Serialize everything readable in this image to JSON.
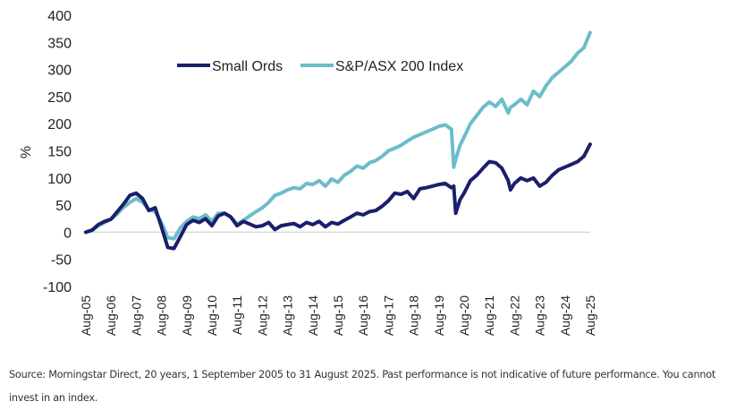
{
  "chart_data": {
    "type": "line",
    "title": "",
    "xlabel": "",
    "ylabel": "%",
    "ylim": [
      -100,
      400
    ],
    "yticks": [
      400,
      350,
      300,
      250,
      200,
      150,
      100,
      50,
      0,
      -50,
      -100
    ],
    "xlim": [
      2005.583,
      2025.583
    ],
    "xtick_labels": [
      "Aug-05",
      "Aug-06",
      "Aug-07",
      "Aug-08",
      "Aug-09",
      "Aug-10",
      "Aug-11",
      "Aug-12",
      "Aug-13",
      "Aug-14",
      "Aug-15",
      "Aug-16",
      "Aug-17",
      "Aug-18",
      "Aug-19",
      "Aug-20",
      "Aug-21",
      "Aug-22",
      "Aug-23",
      "Aug-24",
      "Aug-25"
    ],
    "grid": false,
    "legend_position": "top-center",
    "x": [
      2005.58,
      2005.83,
      2006.08,
      2006.33,
      2006.58,
      2006.83,
      2007.08,
      2007.33,
      2007.58,
      2007.83,
      2008.08,
      2008.33,
      2008.58,
      2008.83,
      2009.08,
      2009.33,
      2009.58,
      2009.83,
      2010.08,
      2010.33,
      2010.58,
      2010.83,
      2011.08,
      2011.33,
      2011.58,
      2011.83,
      2012.08,
      2012.33,
      2012.58,
      2012.83,
      2013.08,
      2013.33,
      2013.58,
      2013.83,
      2014.08,
      2014.33,
      2014.58,
      2014.83,
      2015.08,
      2015.33,
      2015.58,
      2015.83,
      2016.08,
      2016.33,
      2016.58,
      2016.83,
      2017.08,
      2017.33,
      2017.58,
      2017.83,
      2018.08,
      2018.33,
      2018.58,
      2018.83,
      2019.08,
      2019.33,
      2019.58,
      2019.83,
      2020.08,
      2020.17,
      2020.25,
      2020.42,
      2020.58,
      2020.83,
      2021.08,
      2021.33,
      2021.58,
      2021.83,
      2022.08,
      2022.33,
      2022.42,
      2022.58,
      2022.83,
      2023.08,
      2023.33,
      2023.58,
      2023.83,
      2024.08,
      2024.33,
      2024.58,
      2024.83,
      2025.08,
      2025.33,
      2025.58
    ],
    "series": [
      {
        "name": "Small Ords",
        "color": "#1b1f6b",
        "values": [
          0,
          4,
          14,
          20,
          24,
          38,
          52,
          68,
          72,
          62,
          40,
          45,
          10,
          -28,
          -30,
          -8,
          14,
          22,
          18,
          25,
          12,
          30,
          35,
          28,
          12,
          20,
          15,
          10,
          12,
          18,
          5,
          12,
          14,
          16,
          10,
          18,
          14,
          20,
          10,
          18,
          15,
          22,
          28,
          35,
          32,
          38,
          40,
          48,
          58,
          72,
          70,
          75,
          62,
          80,
          82,
          85,
          88,
          90,
          82,
          85,
          35,
          60,
          72,
          95,
          105,
          118,
          130,
          128,
          118,
          95,
          78,
          90,
          100,
          95,
          100,
          85,
          92,
          105,
          115,
          120,
          125,
          130,
          140,
          162
        ]
      },
      {
        "name": "S&P/ASX 200 Index",
        "color": "#6cbccb",
        "values": [
          0,
          3,
          12,
          18,
          24,
          34,
          46,
          55,
          62,
          55,
          42,
          38,
          18,
          -10,
          -12,
          8,
          20,
          28,
          25,
          32,
          20,
          35,
          35,
          28,
          15,
          22,
          30,
          38,
          45,
          55,
          68,
          72,
          78,
          82,
          80,
          90,
          88,
          95,
          85,
          98,
          92,
          105,
          112,
          122,
          118,
          128,
          132,
          140,
          150,
          155,
          160,
          168,
          175,
          180,
          185,
          190,
          195,
          198,
          190,
          120,
          135,
          160,
          175,
          200,
          215,
          230,
          240,
          232,
          245,
          220,
          230,
          235,
          245,
          235,
          260,
          250,
          270,
          285,
          295,
          305,
          315,
          330,
          340,
          368
        ]
      }
    ]
  },
  "footer": {
    "source_line1": "Source: Morningstar Direct, 20 years, 1 September 2005 to 31 August 2025. Past performance is not indicative of future performance. You cannot",
    "source_line2": "invest in an index."
  }
}
